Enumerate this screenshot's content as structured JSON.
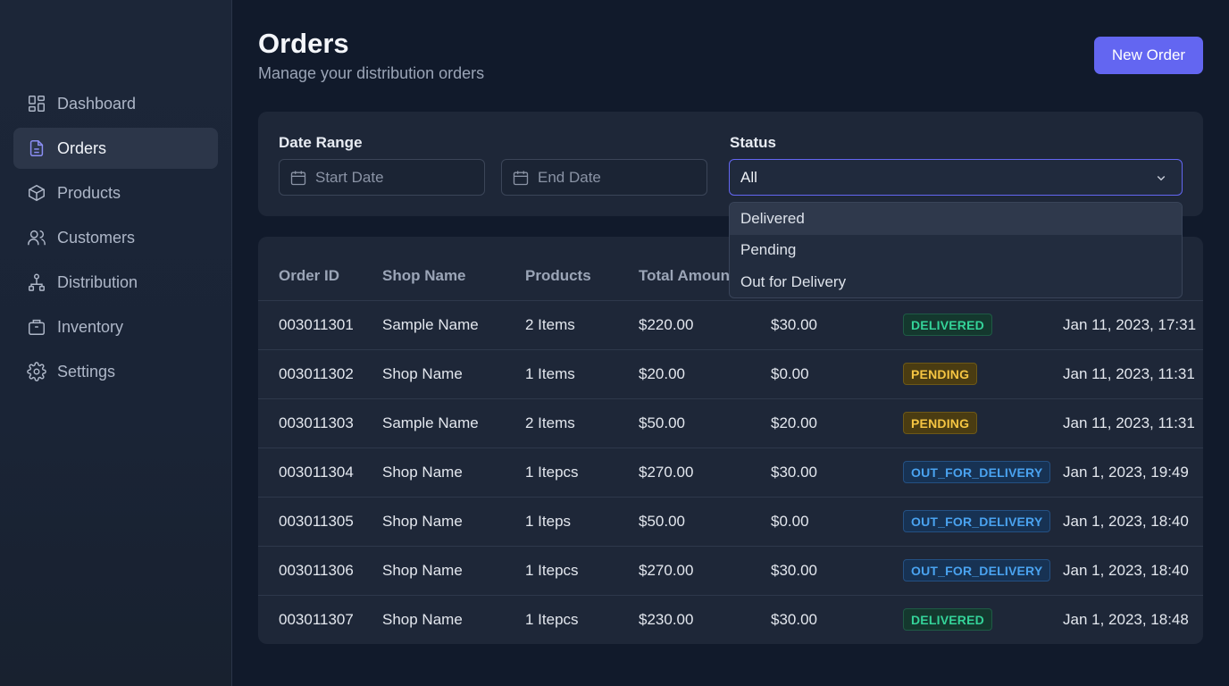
{
  "sidebar": {
    "items": [
      {
        "label": "Dashboard",
        "icon": "dashboard-icon"
      },
      {
        "label": "Orders",
        "icon": "file-icon",
        "active": true
      },
      {
        "label": "Products",
        "icon": "box-icon"
      },
      {
        "label": "Customers",
        "icon": "users-icon"
      },
      {
        "label": "Distribution",
        "icon": "network-icon"
      },
      {
        "label": "Inventory",
        "icon": "inventory-icon"
      },
      {
        "label": "Settings",
        "icon": "gear-icon"
      }
    ]
  },
  "header": {
    "title": "Orders",
    "subtitle": "Manage your distribution orders",
    "new_order_label": "New Order"
  },
  "filters": {
    "date_range_label": "Date Range",
    "start_date_placeholder": "Start Date",
    "end_date_placeholder": "End Date",
    "status_label": "Status",
    "status_value": "All",
    "status_options": [
      "Delivered",
      "Pending",
      "Out for Delivery"
    ]
  },
  "table": {
    "columns": [
      "Order ID",
      "Shop Name",
      "Products",
      "Total Amount"
    ],
    "rows": [
      {
        "id": "003011301",
        "shop": "Sample Name",
        "products": "2 Items",
        "total": "$220.00",
        "fee": "$30.00",
        "status": "DELIVERED",
        "date": "Jan 11, 2023, 17:31"
      },
      {
        "id": "003011302",
        "shop": "Shop Name",
        "products": "1 Items",
        "total": "$20.00",
        "fee": "$0.00",
        "status": "PENDING",
        "date": "Jan 11, 2023, 11:31"
      },
      {
        "id": "003011303",
        "shop": "Sample Name",
        "products": "2 Items",
        "total": "$50.00",
        "fee": "$20.00",
        "status": "PENDING",
        "date": "Jan 11, 2023, 11:31"
      },
      {
        "id": "003011304",
        "shop": "Shop Name",
        "products": "1 Itepcs",
        "total": "$270.00",
        "fee": "$30.00",
        "status": "OUT_FOR_DELIVERY",
        "date": "Jan 1, 2023, 19:49"
      },
      {
        "id": "003011305",
        "shop": "Shop Name",
        "products": "1 Iteps",
        "total": "$50.00",
        "fee": "$0.00",
        "status": "OUT_FOR_DELIVERY",
        "date": "Jan 1, 2023, 18:40"
      },
      {
        "id": "003011306",
        "shop": "Shop Name",
        "products": "1 Itepcs",
        "total": "$270.00",
        "fee": "$30.00",
        "status": "OUT_FOR_DELIVERY",
        "date": "Jan 1, 2023, 18:40"
      },
      {
        "id": "003011307",
        "shop": "Shop Name",
        "products": "1 Itepcs",
        "total": "$230.00",
        "fee": "$30.00",
        "status": "DELIVERED",
        "date": "Jan 1, 2023, 18:48"
      }
    ]
  },
  "colors": {
    "accent": "#6366f1",
    "delivered": "#34d399",
    "pending": "#f5c542",
    "out_for_delivery": "#4aa3f0"
  }
}
